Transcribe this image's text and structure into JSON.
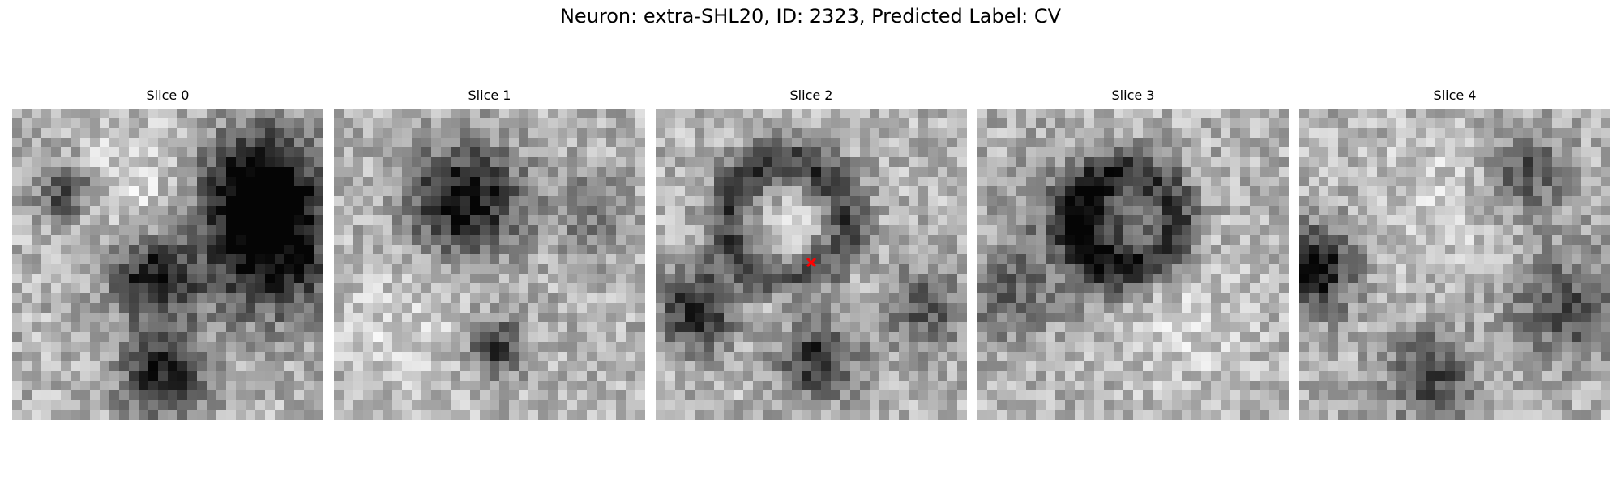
{
  "figure": {
    "title": "Neuron: extra-SHL20, ID: 2323, Predicted Label: CV"
  },
  "slices": [
    {
      "title": "Slice 0"
    },
    {
      "title": "Slice 1"
    },
    {
      "title": "Slice 2",
      "marker": {
        "symbol": "red-x-marker",
        "color": "#ff0000"
      }
    },
    {
      "title": "Slice 3"
    },
    {
      "title": "Slice 4"
    }
  ]
}
